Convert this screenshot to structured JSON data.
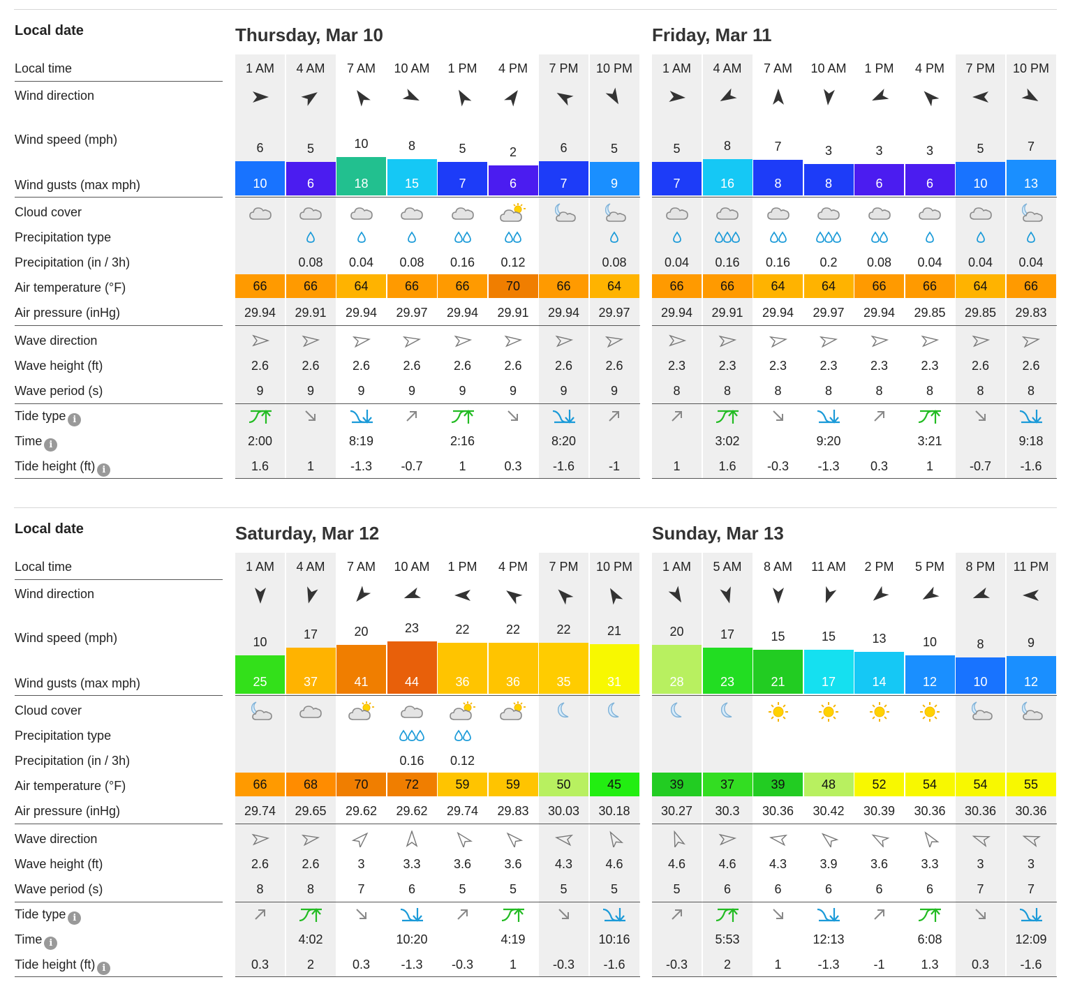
{
  "row_labels": {
    "local_date": "Local date",
    "local_time": "Local time",
    "wind_direction": "Wind direction",
    "wind_speed": "Wind speed (mph)",
    "wind_gusts": "Wind gusts (max mph)",
    "cloud_cover": "Cloud cover",
    "precip_type": "Precipitation type",
    "precip": "Precipitation (in / 3h)",
    "air_temp": "Air temperature (°F)",
    "air_pressure": "Air pressure (inHg)",
    "wave_direction": "Wave direction",
    "wave_height": "Wave height (ft)",
    "wave_period": "Wave period (s)",
    "tide_type": "Tide type",
    "tide_time": "Time",
    "tide_height": "Tide height (ft)"
  },
  "info_glyph": "i",
  "colors": {
    "wind_low": "#4b1cf0",
    "wind_mid": "#1aa3ff",
    "wind_green": "#22cc22",
    "gust_yellow": "#f8f800",
    "temp_orange": "#ff9a00",
    "tide_rise": "#22bb22",
    "tide_fall": "#1a9ad8"
  },
  "days": [
    {
      "title": "Thursday, Mar 10",
      "times": [
        "1 AM",
        "4 AM",
        "7 AM",
        "10 AM",
        "1 PM",
        "4 PM",
        "7 PM",
        "10 PM"
      ],
      "wind_dir": [
        90,
        55,
        -35,
        115,
        -30,
        35,
        -60,
        150
      ],
      "wind_speed": [
        "6",
        "5",
        "10",
        "8",
        "5",
        "2",
        "6",
        "5"
      ],
      "gusts": [
        "10",
        "6",
        "18",
        "15",
        "7",
        "6",
        "7",
        "9"
      ],
      "gust_colors": [
        "#1873ff",
        "#4b1cf0",
        "#22c08f",
        "#15c8f5",
        "#1d3cf8",
        "#4b1cf0",
        "#1d3cf8",
        "#1a8fff"
      ],
      "cloud": [
        "cloudy",
        "cloudy",
        "cloudy",
        "cloudy",
        "cloudy",
        "partly-sunny",
        "moon-cloud",
        "moon-cloud"
      ],
      "drops": [
        0,
        1,
        1,
        1,
        2,
        2,
        0,
        1
      ],
      "precip": [
        "",
        "0.08",
        "0.04",
        "0.08",
        "0.16",
        "0.12",
        "",
        "0.08"
      ],
      "temp": [
        "66",
        "66",
        "64",
        "66",
        "66",
        "70",
        "66",
        "64"
      ],
      "temp_colors": [
        "#ff9a00",
        "#ff9a00",
        "#ffb300",
        "#ff9a00",
        "#ff9a00",
        "#f07e00",
        "#ff9a00",
        "#ffb300"
      ],
      "pressure": [
        "29.94",
        "29.91",
        "29.94",
        "29.97",
        "29.94",
        "29.91",
        "29.94",
        "29.97"
      ],
      "wave_dir": [
        90,
        85,
        80,
        80,
        85,
        85,
        85,
        80
      ],
      "wave_height": [
        "2.6",
        "2.6",
        "2.6",
        "2.6",
        "2.6",
        "2.6",
        "2.6",
        "2.6"
      ],
      "wave_period": [
        "9",
        "9",
        "9",
        "9",
        "9",
        "9",
        "9",
        "9"
      ],
      "tide_type": [
        "high",
        "fall",
        "low",
        "rise",
        "high",
        "fall",
        "low",
        "rise"
      ],
      "tide_time": [
        "2:00",
        "",
        "8:19",
        "",
        "2:16",
        "",
        "8:20",
        ""
      ],
      "tide_height": [
        "1.6",
        "1",
        "-1.3",
        "-0.7",
        "1",
        "0.3",
        "-1.6",
        "-1"
      ],
      "shaded": [
        0,
        1,
        6,
        7
      ]
    },
    {
      "title": "Friday, Mar 11",
      "times": [
        "1 AM",
        "4 AM",
        "7 AM",
        "10 AM",
        "1 PM",
        "4 PM",
        "7 PM",
        "10 PM"
      ],
      "wind_dir": [
        95,
        -120,
        0,
        185,
        -115,
        -45,
        -90,
        120
      ],
      "wind_speed": [
        "5",
        "8",
        "7",
        "3",
        "3",
        "3",
        "5",
        "7"
      ],
      "gusts": [
        "7",
        "16",
        "8",
        "8",
        "6",
        "6",
        "10",
        "13"
      ],
      "gust_colors": [
        "#1d3cf8",
        "#15c8f5",
        "#1d3cf8",
        "#1d3cf8",
        "#4b1cf0",
        "#4b1cf0",
        "#1873ff",
        "#1a8fff"
      ],
      "cloud": [
        "cloudy",
        "cloudy",
        "cloudy",
        "cloudy",
        "cloudy",
        "cloudy",
        "cloudy",
        "moon-cloud"
      ],
      "drops": [
        1,
        3,
        2,
        3,
        2,
        1,
        1,
        1
      ],
      "precip": [
        "0.04",
        "0.16",
        "0.16",
        "0.2",
        "0.08",
        "0.04",
        "0.04",
        "0.04"
      ],
      "temp": [
        "66",
        "66",
        "64",
        "64",
        "66",
        "66",
        "64",
        "66"
      ],
      "temp_colors": [
        "#ff9a00",
        "#ff9a00",
        "#ffb300",
        "#ffb300",
        "#ff9a00",
        "#ff9a00",
        "#ffb300",
        "#ff9a00"
      ],
      "pressure": [
        "29.94",
        "29.91",
        "29.94",
        "29.97",
        "29.94",
        "29.85",
        "29.85",
        "29.83"
      ],
      "wave_dir": [
        90,
        85,
        80,
        80,
        85,
        85,
        85,
        80
      ],
      "wave_height": [
        "2.3",
        "2.3",
        "2.3",
        "2.3",
        "2.3",
        "2.3",
        "2.6",
        "2.6"
      ],
      "wave_period": [
        "8",
        "8",
        "8",
        "8",
        "8",
        "8",
        "8",
        "8"
      ],
      "tide_type": [
        "rise",
        "high",
        "fall",
        "low",
        "rise",
        "high",
        "fall",
        "low"
      ],
      "tide_time": [
        "",
        "3:02",
        "",
        "9:20",
        "",
        "3:21",
        "",
        "9:18"
      ],
      "tide_height": [
        "1",
        "1.6",
        "-0.3",
        "-1.3",
        "0.3",
        "1",
        "-0.7",
        "-1.6"
      ],
      "shaded": [
        0,
        1,
        6,
        7
      ]
    },
    {
      "title": "Saturday, Mar 12",
      "times": [
        "1 AM",
        "4 AM",
        "7 AM",
        "10 AM",
        "1 PM",
        "4 PM",
        "7 PM",
        "10 PM"
      ],
      "wind_dir": [
        180,
        -165,
        -140,
        -110,
        -90,
        -55,
        -45,
        -30
      ],
      "wind_speed": [
        "10",
        "17",
        "20",
        "23",
        "22",
        "22",
        "22",
        "21"
      ],
      "gusts": [
        "25",
        "37",
        "41",
        "44",
        "36",
        "36",
        "35",
        "31"
      ],
      "gust_colors": [
        "#33e01a",
        "#ffb300",
        "#f07e00",
        "#e8600a",
        "#ffc400",
        "#ffc400",
        "#ffcc00",
        "#f8f800"
      ],
      "cloud": [
        "moon-cloud",
        "cloudy",
        "partly-sunny",
        "cloudy",
        "partly-sunny",
        "partly-sunny",
        "moon",
        "moon"
      ],
      "drops": [
        0,
        0,
        0,
        3,
        2,
        0,
        0,
        0
      ],
      "precip": [
        "",
        "",
        "",
        "0.16",
        "0.12",
        "",
        "",
        ""
      ],
      "temp": [
        "66",
        "68",
        "70",
        "72",
        "59",
        "59",
        "50",
        "45"
      ],
      "temp_colors": [
        "#ff9a00",
        "#ff8c00",
        "#f07e00",
        "#f07e00",
        "#ffc400",
        "#ffc400",
        "#b8f060",
        "#22ee11"
      ],
      "pressure": [
        "29.74",
        "29.65",
        "29.62",
        "29.62",
        "29.74",
        "29.83",
        "30.03",
        "30.18"
      ],
      "wave_dir": [
        85,
        80,
        45,
        0,
        -40,
        -45,
        -80,
        -30
      ],
      "wave_height": [
        "2.6",
        "2.6",
        "3",
        "3.3",
        "3.6",
        "3.6",
        "4.3",
        "4.6"
      ],
      "wave_period": [
        "8",
        "8",
        "7",
        "6",
        "5",
        "5",
        "5",
        "5"
      ],
      "tide_type": [
        "rise",
        "high",
        "fall",
        "low",
        "rise",
        "high",
        "fall",
        "low"
      ],
      "tide_time": [
        "",
        "4:02",
        "",
        "10:20",
        "",
        "4:19",
        "",
        "10:16"
      ],
      "tide_height": [
        "0.3",
        "2",
        "0.3",
        "-1.3",
        "-0.3",
        "1",
        "-0.3",
        "-1.6"
      ],
      "shaded": [
        0,
        1,
        6,
        7
      ]
    },
    {
      "title": "Sunday, Mar 13",
      "times": [
        "1 AM",
        "5 AM",
        "8 AM",
        "11 AM",
        "2 PM",
        "5 PM",
        "8 PM",
        "11 PM"
      ],
      "wind_dir": [
        150,
        165,
        180,
        -160,
        -130,
        -120,
        -110,
        -90
      ],
      "wind_speed": [
        "20",
        "17",
        "15",
        "15",
        "13",
        "10",
        "8",
        "9"
      ],
      "gusts": [
        "28",
        "23",
        "21",
        "17",
        "14",
        "12",
        "10",
        "12"
      ],
      "gust_colors": [
        "#b8f060",
        "#22dd22",
        "#22cc22",
        "#15e0f0",
        "#15c8f5",
        "#1a8fff",
        "#1873ff",
        "#1a8fff"
      ],
      "cloud": [
        "moon",
        "moon",
        "sun",
        "sun",
        "sun",
        "sun",
        "moon-cloud",
        "moon-cloud"
      ],
      "drops": [
        0,
        0,
        0,
        0,
        0,
        0,
        0,
        0
      ],
      "precip": [
        "",
        "",
        "",
        "",
        "",
        "",
        "",
        ""
      ],
      "temp": [
        "39",
        "37",
        "39",
        "48",
        "52",
        "54",
        "54",
        "55"
      ],
      "temp_colors": [
        "#22cc22",
        "#33dd22",
        "#22cc22",
        "#b8f060",
        "#f8f800",
        "#f8f800",
        "#f8f800",
        "#f8f800"
      ],
      "pressure": [
        "30.27",
        "30.3",
        "30.36",
        "30.42",
        "30.39",
        "30.36",
        "30.36",
        "30.36"
      ],
      "wave_dir": [
        -20,
        85,
        -80,
        -50,
        -60,
        -35,
        -70,
        -70
      ],
      "wave_height": [
        "4.6",
        "4.6",
        "4.3",
        "3.9",
        "3.6",
        "3.3",
        "3",
        "3"
      ],
      "wave_period": [
        "5",
        "6",
        "6",
        "6",
        "6",
        "6",
        "7",
        "7"
      ],
      "tide_type": [
        "rise",
        "high",
        "fall",
        "low",
        "rise",
        "high",
        "fall",
        "low"
      ],
      "tide_time": [
        "",
        "5:53",
        "",
        "12:13",
        "",
        "6:08",
        "",
        "12:09"
      ],
      "tide_height": [
        "-0.3",
        "2",
        "1",
        "-1.3",
        "-1",
        "1.3",
        "0.3",
        "-1.6"
      ],
      "shaded": [
        0,
        1,
        6,
        7
      ]
    }
  ]
}
